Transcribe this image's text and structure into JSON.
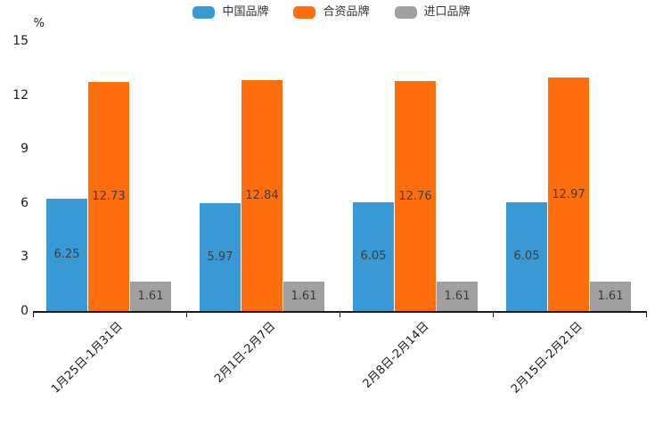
{
  "chart_data": {
    "type": "bar",
    "title": "",
    "unit_label": "%",
    "categories": [
      "1月25日-1月31日",
      "2月1日-2月7日",
      "2月8日-2月14日",
      "2月15日-2月21日"
    ],
    "series": [
      {
        "name": "中国品牌",
        "color": "#3899d4",
        "values": [
          6.25,
          5.97,
          6.05,
          6.05
        ]
      },
      {
        "name": "合资品牌",
        "color": "#ff6e0c",
        "values": [
          12.73,
          12.84,
          12.76,
          12.97
        ]
      },
      {
        "name": "进口品牌",
        "color": "#a0a0a0",
        "values": [
          1.61,
          1.61,
          1.61,
          1.61
        ]
      }
    ],
    "ylim": [
      0,
      15
    ],
    "yticks": [
      0,
      3,
      6,
      9,
      12,
      15
    ],
    "grid": false,
    "legend_position": "top",
    "value_labels": "inside-center",
    "xlabel": "",
    "ylabel": "%"
  }
}
